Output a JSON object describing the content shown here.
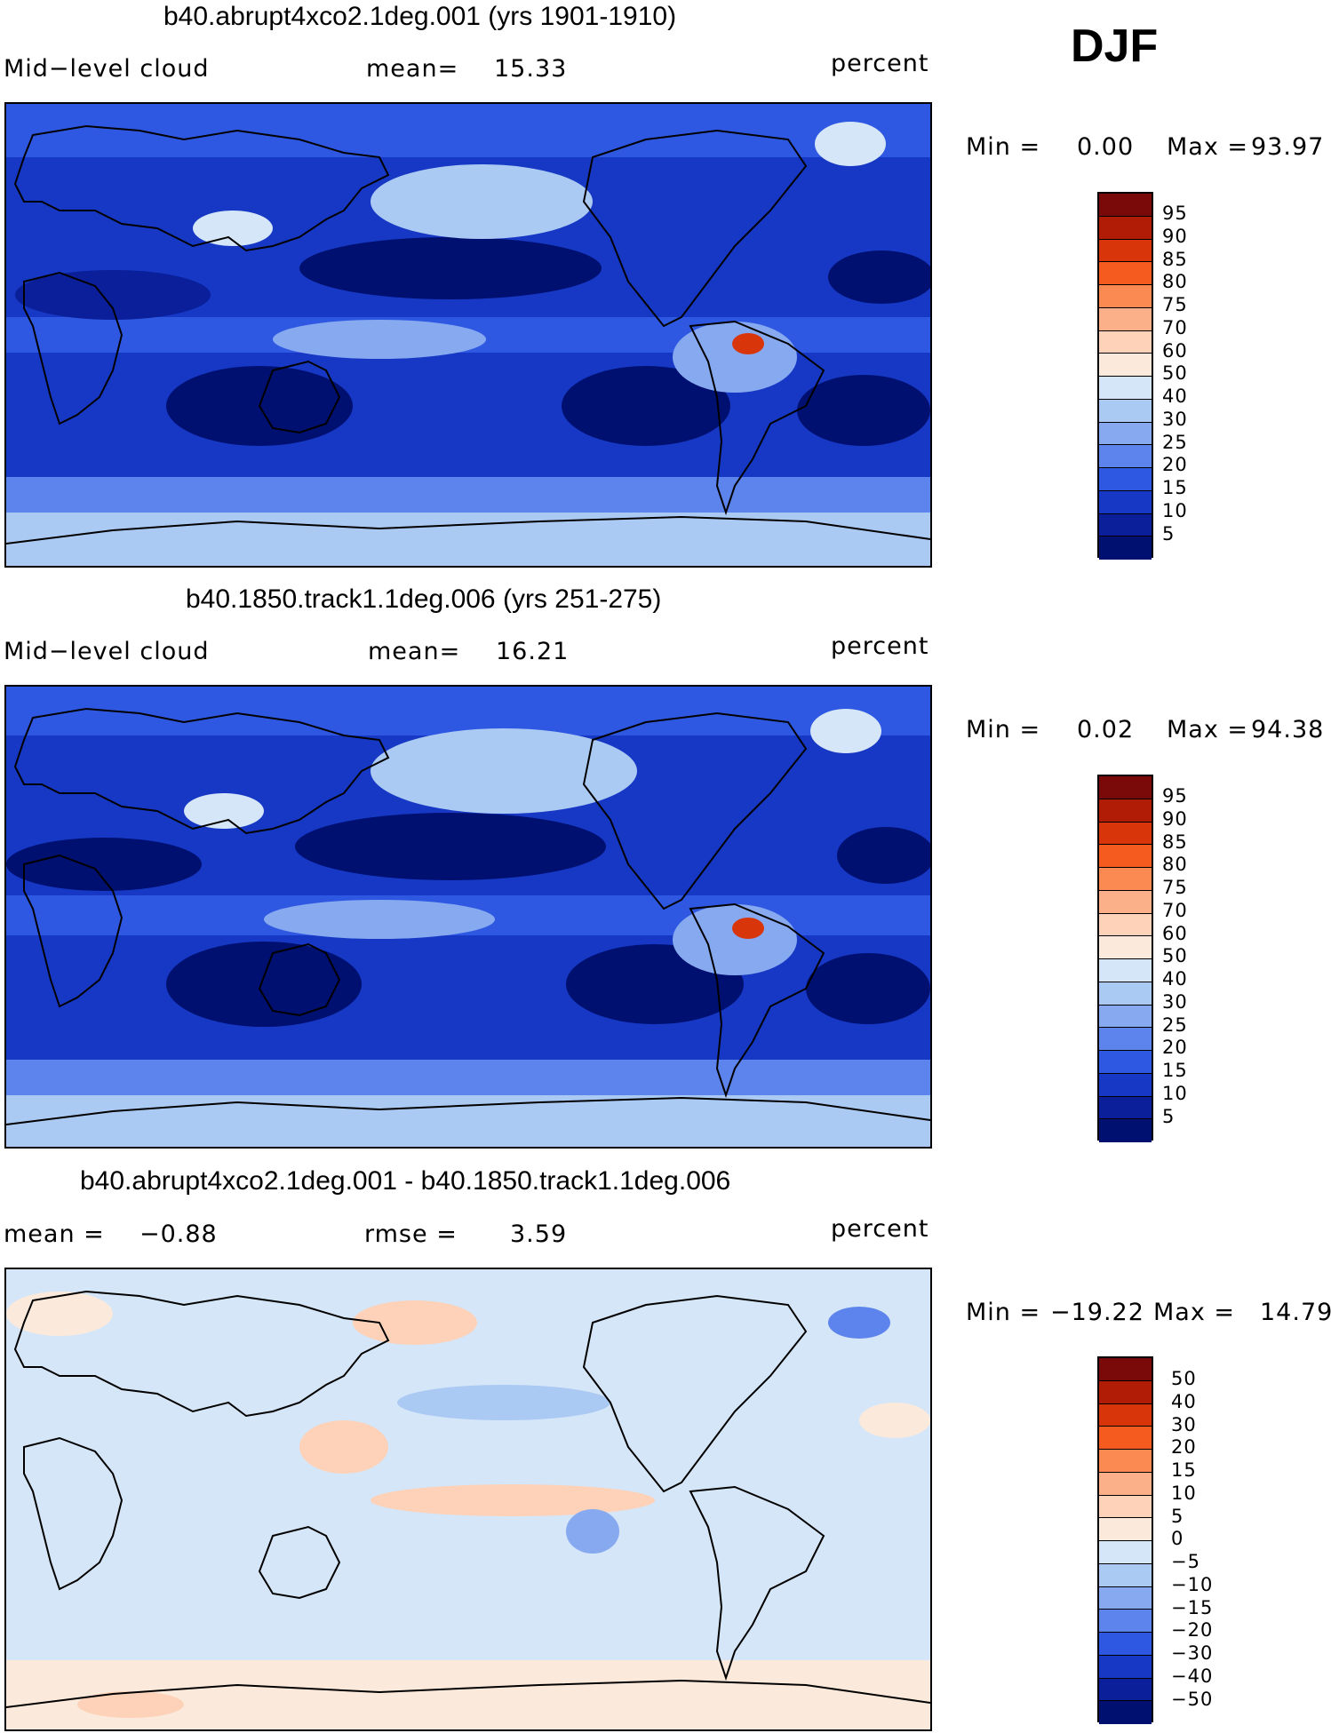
{
  "season": "DJF",
  "panels": [
    {
      "title": "b40.abrupt4xco2.1deg.001 (yrs 1901-1910)",
      "left_label": "Mid−level cloud",
      "stat_label": "mean=",
      "stat_value": "15.33",
      "units": "percent",
      "min_label": "Min =",
      "min_value": "0.00",
      "max_label": "Max =",
      "max_value": "93.97"
    },
    {
      "title": "b40.1850.track1.1deg.006 (yrs 251-275)",
      "left_label": "Mid−level cloud",
      "stat_label": "mean=",
      "stat_value": "16.21",
      "units": "percent",
      "min_label": "Min =",
      "min_value": "0.02",
      "max_label": "Max =",
      "max_value": "94.38"
    },
    {
      "title": "b40.abrupt4xco2.1deg.001 - b40.1850.track1.1deg.006",
      "left_label": "mean =",
      "left_value": "−0.88",
      "stat_label": "rmse =",
      "stat_value": "3.59",
      "units": "percent",
      "min_label": "Min =",
      "min_value": "−19.22",
      "max_label": "Max =",
      "max_value": "14.79"
    }
  ],
  "colorbars": [
    {
      "labels": [
        "95",
        "90",
        "85",
        "80",
        "75",
        "70",
        "60",
        "50",
        "40",
        "30",
        "25",
        "20",
        "15",
        "10",
        "5"
      ],
      "colors": [
        "#7a0a0a",
        "#b01c05",
        "#d8350a",
        "#f55a1e",
        "#fa8a52",
        "#fcb08a",
        "#fdd2b8",
        "#fbeadb",
        "#d5e6f8",
        "#abcaf3",
        "#86a9f0",
        "#5c84ec",
        "#2f58e2",
        "#1638c4",
        "#0a1f99",
        "#001070"
      ]
    },
    {
      "labels": [
        "95",
        "90",
        "85",
        "80",
        "75",
        "70",
        "60",
        "50",
        "40",
        "30",
        "25",
        "20",
        "15",
        "10",
        "5"
      ],
      "colors": [
        "#7a0a0a",
        "#b01c05",
        "#d8350a",
        "#f55a1e",
        "#fa8a52",
        "#fcb08a",
        "#fdd2b8",
        "#fbeadb",
        "#d5e6f8",
        "#abcaf3",
        "#86a9f0",
        "#5c84ec",
        "#2f58e2",
        "#1638c4",
        "#0a1f99",
        "#001070"
      ]
    },
    {
      "labels": [
        "50",
        "40",
        "30",
        "20",
        "15",
        "10",
        "5",
        "0",
        "−5",
        "−10",
        "−15",
        "−20",
        "−30",
        "−40",
        "−50"
      ],
      "colors": [
        "#7a0a0a",
        "#b01c05",
        "#d8350a",
        "#f55a1e",
        "#fa8a52",
        "#fcb08a",
        "#fdd2b8",
        "#fbeadb",
        "#d5e6f8",
        "#abcaf3",
        "#86a9f0",
        "#5c84ec",
        "#2f58e2",
        "#1638c4",
        "#0a1f99",
        "#001070"
      ]
    }
  ]
}
